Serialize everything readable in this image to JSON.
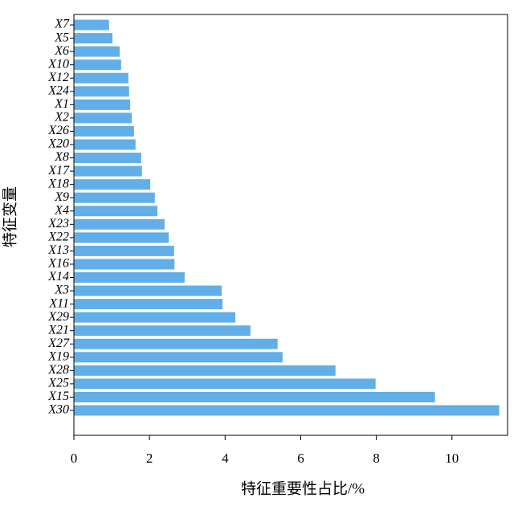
{
  "chart_data": {
    "type": "barh",
    "xlabel": "特征重要性占比/%",
    "ylabel": "特征变量",
    "categories": [
      "X30",
      "X15",
      "X25",
      "X28",
      "X19",
      "X27",
      "X21",
      "X29",
      "X11",
      "X3",
      "X14",
      "X16",
      "X13",
      "X22",
      "X23",
      "X4",
      "X9",
      "X18",
      "X17",
      "X8",
      "X20",
      "X26",
      "X2",
      "X1",
      "X24",
      "X12",
      "X10",
      "X6",
      "X5",
      "X7"
    ],
    "values": [
      11.25,
      9.55,
      7.98,
      6.92,
      5.52,
      5.39,
      4.67,
      4.27,
      3.93,
      3.91,
      2.93,
      2.66,
      2.65,
      2.51,
      2.4,
      2.21,
      2.14,
      2.02,
      1.8,
      1.78,
      1.63,
      1.59,
      1.53,
      1.49,
      1.46,
      1.44,
      1.25,
      1.21,
      1.02,
      0.93
    ],
    "color": "#62aee8",
    "xlim": [
      0,
      11.47
    ],
    "xticks": [
      0,
      2,
      4,
      6,
      8,
      10
    ]
  }
}
